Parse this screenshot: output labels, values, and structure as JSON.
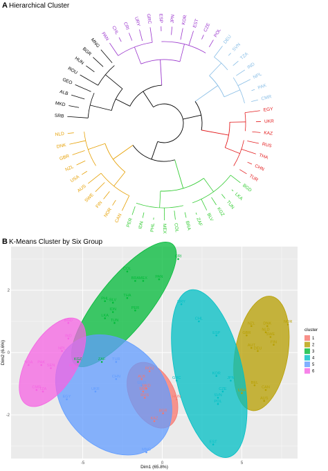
{
  "panel_a": {
    "letter": "A",
    "title": "Hierarchical Cluster"
  },
  "panel_b": {
    "letter": "B",
    "title": "K-Means Cluster by Six Group"
  },
  "colors": {
    "1": "#F8766D",
    "2": "#B79F00",
    "3": "#00BA38",
    "4": "#00BFC4",
    "5": "#619CFF",
    "6": "#F564E3",
    "dendro_black": "#000000",
    "dendro_purple": "#9933CC",
    "dendro_lightblue": "#87BDE6",
    "dendro_red": "#E31A1C",
    "dendro_green": "#33CC33",
    "dendro_orange": "#E69F00"
  },
  "chart_data": [
    {
      "type": "dendrogram",
      "title": "Hierarchical Cluster",
      "groups": [
        {
          "color_key": "dendro_black",
          "leaves": [
            "SRB",
            "MKD",
            "ALB",
            "GEO",
            "ROU",
            "HUN",
            "BGR",
            "MNG"
          ]
        },
        {
          "color_key": "dendro_purple",
          "leaves": [
            "PAN",
            "CHL",
            "CRI",
            "URY",
            "GRC",
            "ESP",
            "JPN",
            "KOR",
            "EST",
            "CZE",
            "POL"
          ]
        },
        {
          "color_key": "dendro_lightblue",
          "leaves": [
            "DEU",
            "SVN",
            "TZA",
            "IND",
            "NPL",
            "PAK",
            "CMR"
          ]
        },
        {
          "color_key": "dendro_red",
          "leaves": [
            "EGY",
            "UKR",
            "KAZ",
            "RUS",
            "THA",
            "CHN",
            "TUR"
          ]
        },
        {
          "color_key": "dendro_green",
          "leaves": [
            "BGD",
            "LKA",
            "TUN",
            "KGZ",
            "BLV",
            "ZAF",
            "BRA",
            "COL",
            "MEX",
            "PHL",
            "IDN",
            "PER"
          ]
        },
        {
          "color_key": "dendro_orange",
          "leaves": [
            "CAN",
            "NOR",
            "FIN",
            "SWE",
            "AUS",
            "USA",
            "NZL",
            "GBR",
            "DNK",
            "NLD"
          ]
        }
      ]
    },
    {
      "type": "scatter",
      "title": "K-Means Cluster by Six Group",
      "xlabel": "Dim1 (65.8%)",
      "ylabel": "Dim2 (6.6%)",
      "xlim": [
        -9.5,
        8.5
      ],
      "ylim": [
        -3.4,
        3.4
      ],
      "xticks": [
        -5,
        0,
        5
      ],
      "yticks": [
        -2,
        0,
        2
      ],
      "grid": true,
      "legend_title": "cluster",
      "legend_position": "right",
      "legend_entries": [
        "1",
        "2",
        "3",
        "4",
        "5",
        "6"
      ],
      "series": [
        {
          "name": "1",
          "points": [
            {
              "label": "ROU",
              "x": -0.8,
              "y": -0.6
            },
            {
              "label": "ALB",
              "x": -1.3,
              "y": -0.85
            },
            {
              "label": "HUN",
              "x": 0.9,
              "y": -1.5
            },
            {
              "label": "BGR",
              "x": 0.05,
              "y": -1.95
            },
            {
              "label": "KAZ",
              "x": -0.5,
              "y": -2.2
            },
            {
              "label": "RUS",
              "x": -1.1,
              "y": -1.45
            },
            {
              "label": "MKD",
              "x": -1.0,
              "y": -1.15
            },
            {
              "label": "SRB",
              "x": -1.2,
              "y": -1.25
            }
          ]
        },
        {
          "name": "2",
          "points": [
            {
              "label": "NOR",
              "x": 7.9,
              "y": 0.9
            },
            {
              "label": "NZL",
              "x": 5.6,
              "y": 0.85
            },
            {
              "label": "DNK",
              "x": 6.6,
              "y": 0.85
            },
            {
              "label": "NLD",
              "x": 6.5,
              "y": 0.65
            },
            {
              "label": "SWE",
              "x": 6.8,
              "y": 0.5
            },
            {
              "label": "GBR",
              "x": 5.3,
              "y": 0.55
            },
            {
              "label": "FIN",
              "x": 7.0,
              "y": 0.25
            },
            {
              "label": "AUT",
              "x": 5.6,
              "y": 0.15
            },
            {
              "label": "DEU",
              "x": 6.0,
              "y": 0.05
            },
            {
              "label": "BEL",
              "x": 5.8,
              "y": -1.05
            },
            {
              "label": "USA",
              "x": 5.0,
              "y": -1.3
            },
            {
              "label": "CAN",
              "x": 6.5,
              "y": -1.2
            },
            {
              "label": "AUS",
              "x": 6.4,
              "y": -1.55
            }
          ]
        },
        {
          "name": "3",
          "points": [
            {
              "label": "CRI",
              "x": 1.0,
              "y": 3.0
            },
            {
              "label": "COL",
              "x": -2.2,
              "y": 2.6
            },
            {
              "label": "PAN",
              "x": -0.2,
              "y": 2.35
            },
            {
              "label": "BRA",
              "x": -1.7,
              "y": 2.3
            },
            {
              "label": "MEX",
              "x": -1.2,
              "y": 2.3
            },
            {
              "label": "THA",
              "x": -2.2,
              "y": 1.75
            },
            {
              "label": "PHL",
              "x": -3.6,
              "y": 1.65
            },
            {
              "label": "BLV",
              "x": -3.1,
              "y": 1.6
            },
            {
              "label": "PER",
              "x": -1.7,
              "y": 1.35
            },
            {
              "label": "LKA",
              "x": -3.6,
              "y": 1.1
            },
            {
              "label": "IDN",
              "x": -3.1,
              "y": 1.3
            },
            {
              "label": "TUN",
              "x": -3.0,
              "y": 0.95
            },
            {
              "label": "KGZ",
              "x": -5.3,
              "y": -0.3
            },
            {
              "label": "ZAF",
              "x": -3.8,
              "y": -0.3
            }
          ]
        },
        {
          "name": "4",
          "points": [
            {
              "label": "URY",
              "x": 1.2,
              "y": 1.55
            },
            {
              "label": "CHL",
              "x": 2.3,
              "y": 1.0
            },
            {
              "label": "ESP",
              "x": 3.4,
              "y": 0.55
            },
            {
              "label": "GRC",
              "x": 0.9,
              "y": -0.9
            },
            {
              "label": "KOR",
              "x": 3.4,
              "y": -0.75
            },
            {
              "label": "JPN",
              "x": 4.3,
              "y": -0.9
            },
            {
              "label": "CZE",
              "x": 3.8,
              "y": -1.25
            },
            {
              "label": "SVN",
              "x": 3.5,
              "y": -1.45
            },
            {
              "label": "POL",
              "x": 3.5,
              "y": -1.65
            },
            {
              "label": "EST",
              "x": 3.2,
              "y": -2.95
            }
          ]
        },
        {
          "name": "5",
          "points": [
            {
              "label": "TUR",
              "x": -2.9,
              "y": -0.3
            },
            {
              "label": "CHN",
              "x": -2.9,
              "y": -0.85
            },
            {
              "label": "UKR",
              "x": -4.2,
              "y": -1.25
            },
            {
              "label": "GEO",
              "x": -1.3,
              "y": -1.05
            },
            {
              "label": "EGY",
              "x": -6.0,
              "y": -1.5
            },
            {
              "label": "MNG",
              "x": -1.0,
              "y": -3.2
            }
          ]
        },
        {
          "name": "6",
          "points": [
            {
              "label": "BGD",
              "x": -5.9,
              "y": 0.95
            },
            {
              "label": "IND",
              "x": -5.9,
              "y": 0.45
            },
            {
              "label": "NPL",
              "x": -6.3,
              "y": 0.05
            },
            {
              "label": "NGA",
              "x": -8.4,
              "y": -0.4
            },
            {
              "label": "PAK",
              "x": -7.6,
              "y": -0.4
            },
            {
              "label": "GHA",
              "x": -5.6,
              "y": -0.5
            },
            {
              "label": "SEN",
              "x": -7.0,
              "y": -0.5
            },
            {
              "label": "CMR",
              "x": -7.9,
              "y": -1.2
            },
            {
              "label": "TZA",
              "x": -7.5,
              "y": -1.25
            }
          ]
        }
      ]
    }
  ]
}
